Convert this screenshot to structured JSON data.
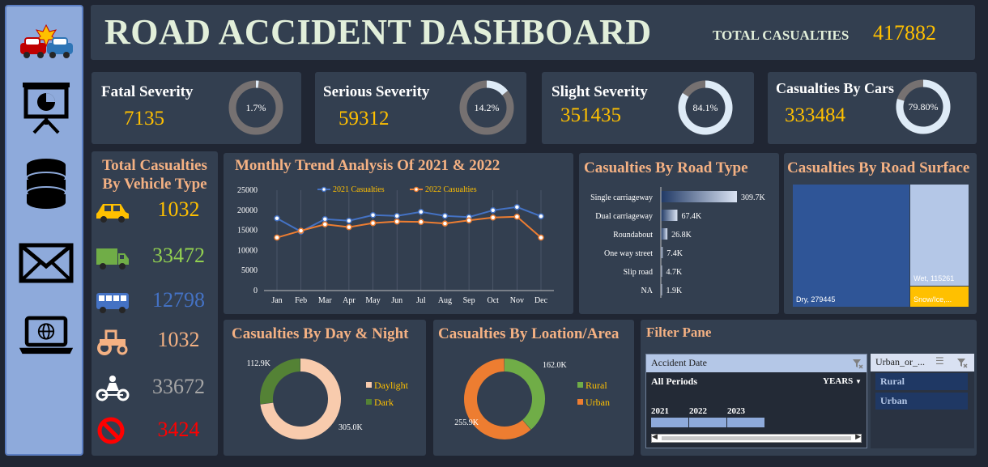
{
  "header": {
    "title": "ROAD ACCIDENT DASHBOARD",
    "total_label": "TOTAL CASUALTIES",
    "total_value": "417882"
  },
  "sidebar": {
    "icons": [
      "car-crash-icon",
      "presentation-chart-icon",
      "database-icon",
      "mail-icon",
      "laptop-globe-icon"
    ]
  },
  "kpis": [
    {
      "label": "Fatal Severity",
      "value": "7135",
      "pct_label": "1.7%",
      "pct": 1.7
    },
    {
      "label": "Serious Severity",
      "value": "59312",
      "pct_label": "14.2%",
      "pct": 14.2
    },
    {
      "label": "Slight Severity",
      "value": "351435",
      "pct_label": "84.1%",
      "pct": 84.1
    },
    {
      "label": "Casualties By Cars",
      "value": "333484",
      "pct_label": "79.80%",
      "pct": 79.8
    }
  ],
  "vehicle": {
    "title_line1": "Total Casualties",
    "title_line2": "By Vehicle Type",
    "rows": [
      {
        "icon": "car-icon",
        "value": "1032",
        "color": "#ffc000"
      },
      {
        "icon": "truck-icon",
        "value": "33472",
        "color": "#92d050"
      },
      {
        "icon": "bus-icon",
        "value": "12798",
        "color": "#4472c4"
      },
      {
        "icon": "tractor-icon",
        "value": "1032",
        "color": "#f4b183"
      },
      {
        "icon": "motorbike-icon",
        "value": "33672",
        "color": "#a6a6a6"
      },
      {
        "icon": "no-entry-icon",
        "value": "3424",
        "color": "#ff0000"
      }
    ]
  },
  "filter": {
    "title": "Filter Pane",
    "date_header": "Accident Date",
    "period_label": "All Periods",
    "years_label": "YEARS",
    "years": [
      "2021",
      "2022",
      "2023"
    ],
    "urban_header": "Urban_or_...",
    "urban_items": [
      "Rural",
      "Urban"
    ]
  },
  "chart_data": [
    {
      "type": "line",
      "title": "Monthly Trend Analysis Of 2021 & 2022",
      "categories": [
        "Jan",
        "Feb",
        "Mar",
        "Apr",
        "May",
        "Jun",
        "Jul",
        "Aug",
        "Sep",
        "Oct",
        "Nov",
        "Dec"
      ],
      "ylim": [
        0,
        25000
      ],
      "yticks": [
        "0",
        "5000",
        "10000",
        "15000",
        "20000",
        "25000"
      ],
      "legend_position": "top",
      "series": [
        {
          "name": "2021 Casualties",
          "color": "#4472c4",
          "values": [
            18000,
            14700,
            17800,
            17400,
            18800,
            18600,
            19600,
            18600,
            18300,
            20000,
            20800,
            18500
          ]
        },
        {
          "name": "2022 Casualties",
          "color": "#ed7d31",
          "values": [
            13200,
            14900,
            16500,
            15800,
            16800,
            17200,
            17100,
            16700,
            17500,
            18200,
            18400,
            13200
          ]
        }
      ]
    },
    {
      "type": "bar",
      "orientation": "horizontal",
      "title": "Casualties By Road Type",
      "categories": [
        "Single carriageway",
        "Dual carriageway",
        "Roundabout",
        "One way street",
        "Slip road",
        "NA"
      ],
      "values": [
        309700,
        67400,
        26800,
        7400,
        4700,
        1900
      ],
      "labels": [
        "309.7K",
        "67.4K",
        "26.8K",
        "7.4K",
        "4.7K",
        "1.9K"
      ]
    },
    {
      "type": "treemap",
      "title": "Casualties By Road Surface",
      "items": [
        {
          "label": "Dry, 279445",
          "value": 279445,
          "color": "#2f5597"
        },
        {
          "label": "Wet, 115261",
          "value": 115261,
          "color": "#b4c7e7"
        },
        {
          "label": "Snow/Ice,...",
          "value": 23176,
          "color": "#ffc000"
        }
      ]
    },
    {
      "type": "pie",
      "title": "Casualties By Day & Night",
      "legend_position": "right",
      "slices": [
        {
          "name": "Daylight",
          "value": 305000,
          "label": "305.0K",
          "color": "#f8cbad"
        },
        {
          "name": "Dark",
          "value": 112900,
          "label": "112.9K",
          "color": "#548235"
        }
      ]
    },
    {
      "type": "pie",
      "title": "Casualties By Loation/Area",
      "legend_position": "right",
      "slices": [
        {
          "name": "Rural",
          "value": 162000,
          "label": "162.0K",
          "color": "#70ad47"
        },
        {
          "name": "Urban",
          "value": 255900,
          "label": "255.9K",
          "color": "#ed7d31"
        }
      ]
    }
  ]
}
